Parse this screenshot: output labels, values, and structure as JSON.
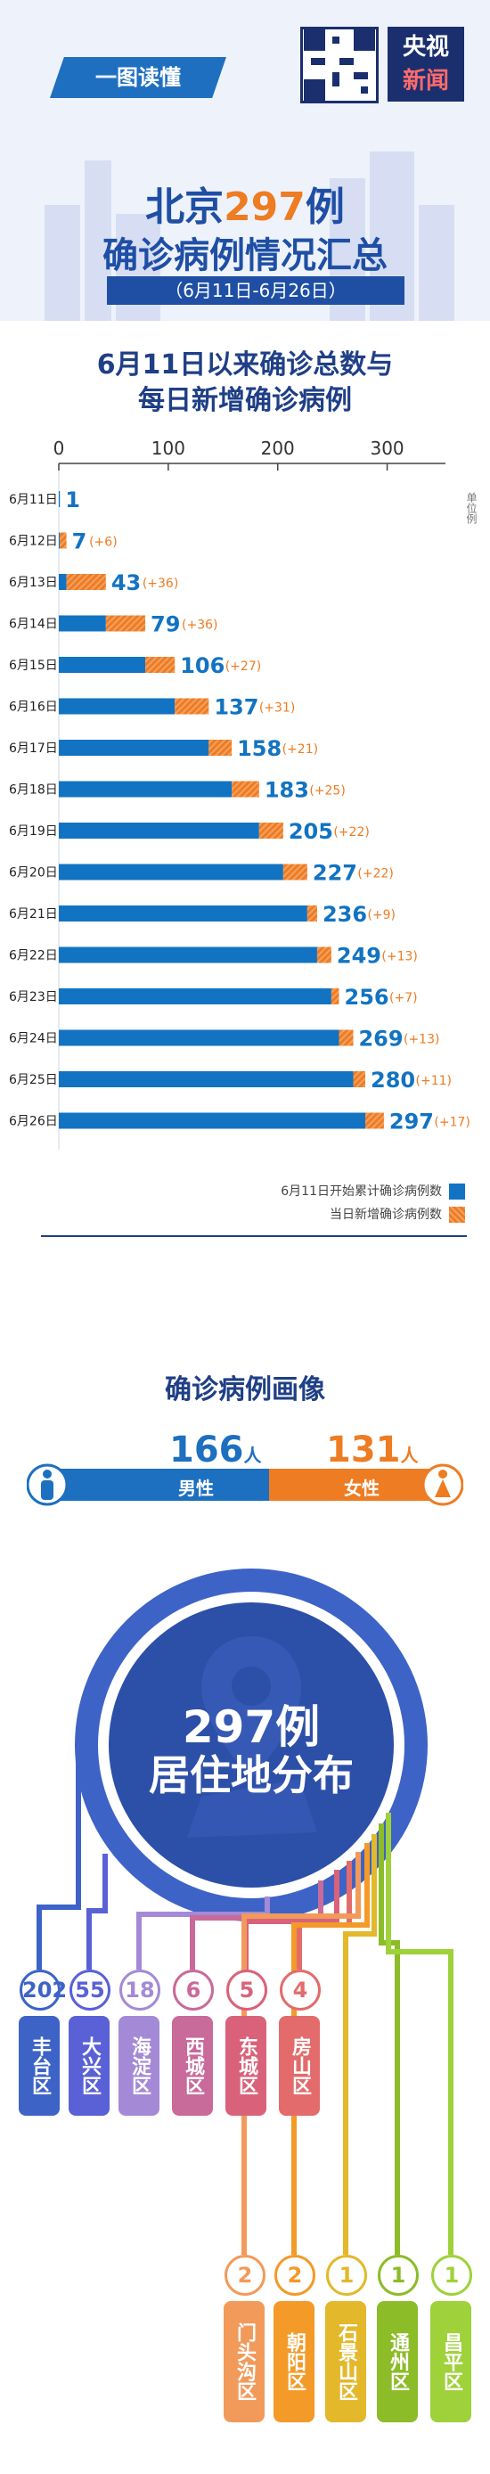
{
  "header": {
    "tag": "一图读懂",
    "logo_line1": "央视",
    "logo_line2": "新闻"
  },
  "title": {
    "line1_prefix": "北京",
    "line1_number": "297",
    "line1_suffix": "例",
    "line2": "确诊病例情况汇总",
    "dates": "（6月11日-6月26日）"
  },
  "chart_section": {
    "title_line1": "6月11日以来确诊总数与",
    "title_line2": "每日新增确诊病例",
    "unit": "单位例"
  },
  "chart_data": {
    "type": "bar",
    "xlim": [
      0,
      350
    ],
    "ticks": [
      0,
      100,
      200,
      300
    ],
    "categories": [
      "6月11日",
      "6月12日",
      "6月13日",
      "6月14日",
      "6月15日",
      "6月16日",
      "6月17日",
      "6月18日",
      "6月19日",
      "6月20日",
      "6月21日",
      "6月22日",
      "6月23日",
      "6月24日",
      "6月25日",
      "6月26日"
    ],
    "series": [
      {
        "name": "6月11日开始累计确诊病例数",
        "color": "#1273c2",
        "values": [
          1,
          7,
          43,
          79,
          106,
          137,
          158,
          183,
          205,
          227,
          236,
          249,
          256,
          269,
          280,
          297
        ]
      },
      {
        "name": "当日新增确诊病例数",
        "color": "#ee7c22",
        "values": [
          0,
          6,
          36,
          36,
          27,
          31,
          21,
          25,
          22,
          22,
          9,
          13,
          7,
          13,
          11,
          17
        ]
      }
    ],
    "total_labels": [
      "1",
      "7",
      "43",
      "79",
      "106",
      "137",
      "158",
      "183",
      "205",
      "227",
      "236",
      "249",
      "256",
      "269",
      "280",
      "297"
    ],
    "increase_labels": [
      "",
      "(+6)",
      "(+36)",
      "(+36)",
      "(+27)",
      "(+31)",
      "(+21)",
      "(+25)",
      "(+22)",
      "(+22)",
      "(+9)",
      "(+13)",
      "(+7)",
      "(+13)",
      "(+11)",
      "(+17)"
    ]
  },
  "profile": {
    "title": "确诊病例画像",
    "male": {
      "count": "166",
      "unit": "人",
      "label": "男性"
    },
    "female": {
      "count": "131",
      "unit": "人",
      "label": "女性"
    },
    "male_share": 0.559
  },
  "distribution": {
    "center_line1": "297例",
    "center_line2": "居住地分布",
    "districts": [
      {
        "name": "丰台区",
        "count": "202",
        "color": "#3d63c7"
      },
      {
        "name": "大兴区",
        "count": "55",
        "color": "#5a61d6"
      },
      {
        "name": "海淀区",
        "count": "18",
        "color": "#a48ad6"
      },
      {
        "name": "西城区",
        "count": "6",
        "color": "#c86a9a"
      },
      {
        "name": "东城区",
        "count": "5",
        "color": "#d9627a"
      },
      {
        "name": "房山区",
        "count": "4",
        "color": "#e36b6b"
      },
      {
        "name": "门头沟区",
        "count": "2",
        "color": "#f29a5a"
      },
      {
        "name": "朝阳区",
        "count": "2",
        "color": "#f39a28"
      },
      {
        "name": "石景山区",
        "count": "1",
        "color": "#e3b82a"
      },
      {
        "name": "通州区",
        "count": "1",
        "color": "#8cbc28"
      },
      {
        "name": "昌平区",
        "count": "1",
        "color": "#9fd13a"
      }
    ]
  }
}
